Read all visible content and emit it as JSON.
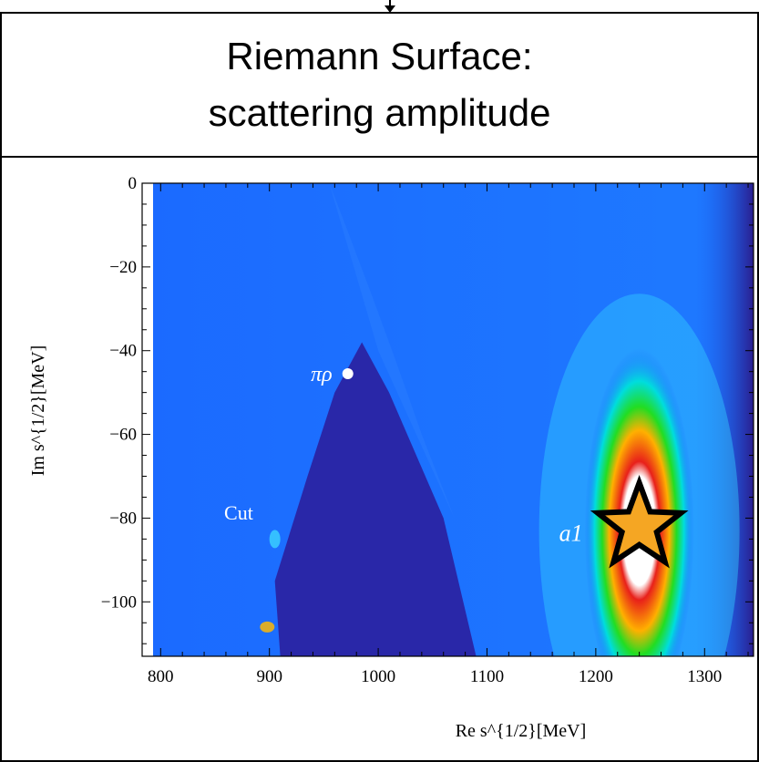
{
  "header": {
    "title_line1": "Riemann Surface:",
    "title_line2": "scattering amplitude"
  },
  "chart_data": {
    "type": "heatmap",
    "title": "Riemann Surface: scattering amplitude",
    "xlabel": "Re s^{1/2}[MeV]",
    "ylabel": "Im s^{1/2}[MeV]",
    "xlim": [
      783,
      1345
    ],
    "ylim": [
      -113,
      0
    ],
    "x_ticks": [
      800,
      900,
      1000,
      1100,
      1200,
      1300
    ],
    "y_ticks": [
      0,
      -20,
      -40,
      -60,
      -80,
      -100
    ],
    "points": [
      {
        "label": "πρ",
        "x": 962,
        "y": -45.5,
        "marker": "dot",
        "color": "#ffffff"
      },
      {
        "label": "a1",
        "x": 1240,
        "y": -82,
        "marker": "star",
        "color": "#f5a623"
      }
    ],
    "annotations": [
      {
        "text": "Cut",
        "x": 880,
        "y": -79
      }
    ],
    "colors": {
      "background": "#1a66ff",
      "dark_region": "#2b1f9e",
      "peak_green": "#22dd22",
      "peak_red": "#e8201a",
      "peak_center": "#ffffff",
      "star_fill": "#f5a623"
    }
  }
}
